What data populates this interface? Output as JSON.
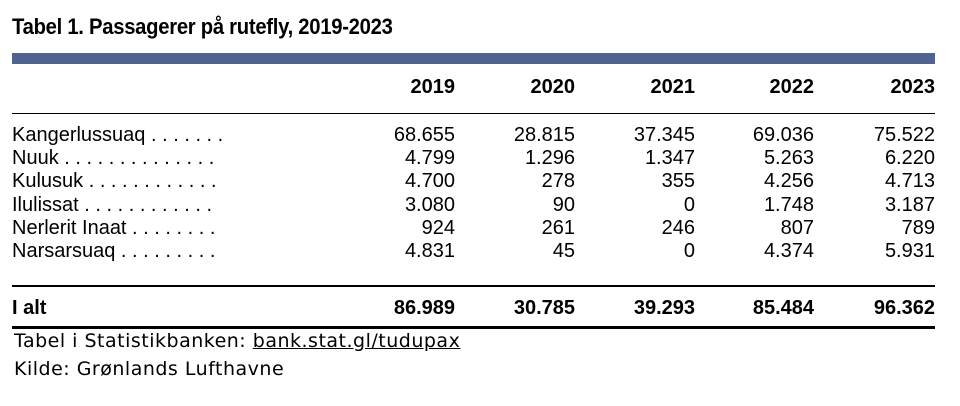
{
  "title": "Tabel 1. Passagerer på rutefly, 2019-2023",
  "columns": [
    "2019",
    "2020",
    "2021",
    "2022",
    "2023"
  ],
  "rows": [
    {
      "label": "Kangerlussuaq . . . . . . .",
      "values": [
        "68.655",
        "28.815",
        "37.345",
        "69.036",
        "75.522"
      ]
    },
    {
      "label": "Nuuk . . . . . . . . . . . . . .",
      "values": [
        "4.799",
        "1.296",
        "1.347",
        "5.263",
        "6.220"
      ]
    },
    {
      "label": "Kulusuk . . . . . . . . . . . .",
      "values": [
        "4.700",
        "278",
        "355",
        "4.256",
        "4.713"
      ]
    },
    {
      "label": "Ilulissat . . . . . . . . . . . .",
      "values": [
        "3.080",
        "90",
        "0",
        "1.748",
        "3.187"
      ]
    },
    {
      "label": "Nerlerit Inaat . . . . . . . .",
      "values": [
        "924",
        "261",
        "246",
        "807",
        "789"
      ]
    },
    {
      "label": "Narsarsuaq . . . . . . . . .",
      "values": [
        "4.831",
        "45",
        "0",
        "4.374",
        "5.931"
      ]
    }
  ],
  "total": {
    "label": "I alt",
    "values": [
      "86.989",
      "30.785",
      "39.293",
      "85.484",
      "96.362"
    ]
  },
  "footer": {
    "statbank_prefix": "Tabel i Statistikbanken:",
    "statbank_link": "bank.stat.gl/tudupax",
    "source": "Kilde: Grønlands Lufthavne"
  },
  "colors": {
    "top_bar": "#4f6290"
  }
}
